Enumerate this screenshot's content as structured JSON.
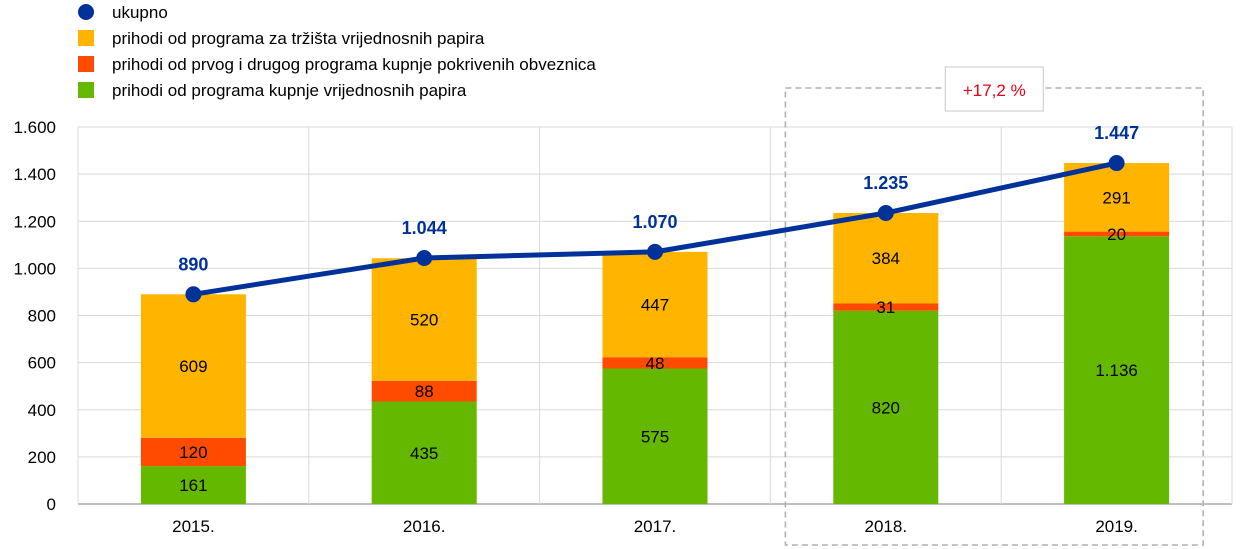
{
  "chart_data": {
    "type": "bar",
    "stacked": true,
    "categories": [
      "2015.",
      "2016.",
      "2017.",
      "2018.",
      "2019."
    ],
    "series": [
      {
        "name": "prihodi od programa kupnje vrijednosnih papira",
        "color": "#65b800",
        "values": [
          161,
          435,
          575,
          820,
          1136
        ],
        "labels": [
          "161",
          "435",
          "575",
          "820",
          "1.136"
        ]
      },
      {
        "name": "prihodi od prvog i drugog programa kupnje pokrivenih obveznica",
        "color": "#ff4b00",
        "values": [
          120,
          88,
          48,
          31,
          20
        ],
        "labels": [
          "120",
          "88",
          "48",
          "31",
          "20"
        ]
      },
      {
        "name": "prihodi od programa za tržišta vrijednosnih papira",
        "color": "#ffb400",
        "values": [
          609,
          520,
          447,
          384,
          291
        ],
        "labels": [
          "609",
          "520",
          "447",
          "384",
          "291"
        ]
      }
    ],
    "total": {
      "name": "ukupno",
      "type": "line",
      "color": "#003299",
      "values": [
        890,
        1044,
        1070,
        1235,
        1447
      ],
      "labels": [
        "890",
        "1.044",
        "1.070",
        "1.235",
        "1.447"
      ]
    },
    "legend": {
      "position": "top-left",
      "order": [
        "ukupno",
        "prihodi od programa za tržišta vrijednosnih papira",
        "prihodi od prvog i drugog programa kupnje pokrivenih obveznica",
        "prihodi od programa kupnje vrijednosnih papira"
      ]
    },
    "ylim": [
      0,
      1600
    ],
    "yticks": [
      0,
      200,
      400,
      600,
      800,
      1000,
      1200,
      1400,
      1600
    ],
    "ytick_labels": [
      "0",
      "200",
      "400",
      "600",
      "800",
      "1.000",
      "1.200",
      "1.400",
      "1.600"
    ],
    "grid": true,
    "annotation": {
      "text": "+17,2 %",
      "color": "#e8001a",
      "spans": [
        "2018.",
        "2019."
      ]
    }
  }
}
